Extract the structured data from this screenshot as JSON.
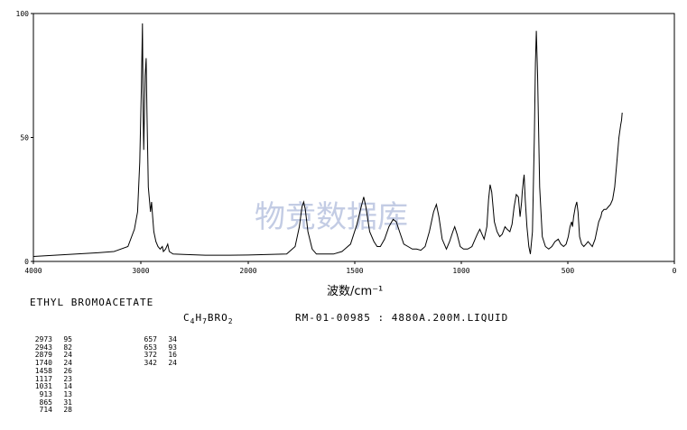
{
  "chart_data": {
    "type": "line",
    "xlabel": "波数/cm⁻¹",
    "ylabel": "",
    "xlim": [
      4000,
      0
    ],
    "ylim": [
      0,
      100
    ],
    "x_ticks": [
      "4000",
      "3000",
      "2000",
      "1500",
      "1000",
      "500",
      "0"
    ],
    "y_ticks": [
      "100",
      "50",
      "0"
    ],
    "grid": false,
    "series": [
      {
        "points": [
          [
            4000,
            2
          ],
          [
            3800,
            2.5
          ],
          [
            3600,
            3
          ],
          [
            3400,
            3.5
          ],
          [
            3250,
            4
          ],
          [
            3120,
            6
          ],
          [
            3060,
            13
          ],
          [
            3030,
            20
          ],
          [
            3010,
            40
          ],
          [
            2995,
            70
          ],
          [
            2985,
            96
          ],
          [
            2978,
            60
          ],
          [
            2973,
            45
          ],
          [
            2960,
            75
          ],
          [
            2950,
            82
          ],
          [
            2943,
            60
          ],
          [
            2930,
            30
          ],
          [
            2910,
            20
          ],
          [
            2900,
            24
          ],
          [
            2890,
            18
          ],
          [
            2879,
            12
          ],
          [
            2860,
            8
          ],
          [
            2840,
            6
          ],
          [
            2820,
            5
          ],
          [
            2800,
            6
          ],
          [
            2790,
            4
          ],
          [
            2770,
            5
          ],
          [
            2750,
            7
          ],
          [
            2735,
            4
          ],
          [
            2700,
            3
          ],
          [
            2600,
            2.8
          ],
          [
            2400,
            2.5
          ],
          [
            2200,
            2.5
          ],
          [
            2000,
            2.6
          ],
          [
            1900,
            2.8
          ],
          [
            1820,
            3
          ],
          [
            1780,
            6
          ],
          [
            1760,
            14
          ],
          [
            1748,
            22
          ],
          [
            1740,
            24
          ],
          [
            1732,
            21
          ],
          [
            1720,
            12
          ],
          [
            1700,
            5
          ],
          [
            1680,
            3
          ],
          [
            1640,
            3
          ],
          [
            1600,
            3
          ],
          [
            1560,
            4
          ],
          [
            1520,
            7
          ],
          [
            1490,
            15
          ],
          [
            1470,
            22
          ],
          [
            1458,
            26
          ],
          [
            1448,
            22
          ],
          [
            1430,
            12
          ],
          [
            1410,
            8
          ],
          [
            1395,
            6
          ],
          [
            1380,
            6
          ],
          [
            1360,
            9
          ],
          [
            1340,
            14
          ],
          [
            1320,
            17
          ],
          [
            1305,
            16
          ],
          [
            1290,
            12
          ],
          [
            1270,
            7
          ],
          [
            1250,
            6
          ],
          [
            1230,
            5
          ],
          [
            1210,
            5
          ],
          [
            1190,
            4.5
          ],
          [
            1170,
            6
          ],
          [
            1150,
            12
          ],
          [
            1130,
            20
          ],
          [
            1117,
            23
          ],
          [
            1105,
            18
          ],
          [
            1090,
            9
          ],
          [
            1070,
            5
          ],
          [
            1055,
            8
          ],
          [
            1040,
            12
          ],
          [
            1031,
            14
          ],
          [
            1020,
            11
          ],
          [
            1005,
            6
          ],
          [
            990,
            5
          ],
          [
            970,
            5
          ],
          [
            950,
            6
          ],
          [
            935,
            9
          ],
          [
            925,
            11
          ],
          [
            913,
            13
          ],
          [
            903,
            11
          ],
          [
            893,
            9
          ],
          [
            880,
            14
          ],
          [
            872,
            25
          ],
          [
            865,
            31
          ],
          [
            857,
            28
          ],
          [
            845,
            16
          ],
          [
            832,
            12
          ],
          [
            820,
            10
          ],
          [
            808,
            11
          ],
          [
            795,
            14
          ],
          [
            785,
            13
          ],
          [
            772,
            12
          ],
          [
            762,
            15
          ],
          [
            752,
            22
          ],
          [
            742,
            27
          ],
          [
            732,
            26
          ],
          [
            724,
            18
          ],
          [
            717,
            24
          ],
          [
            714,
            28
          ],
          [
            708,
            33
          ],
          [
            705,
            35
          ],
          [
            700,
            25
          ],
          [
            692,
            14
          ],
          [
            683,
            6
          ],
          [
            676,
            3
          ],
          [
            666,
            12
          ],
          [
            657,
            50
          ],
          [
            652,
            80
          ],
          [
            648,
            93
          ],
          [
            642,
            75
          ],
          [
            632,
            30
          ],
          [
            620,
            10
          ],
          [
            605,
            6
          ],
          [
            590,
            5
          ],
          [
            575,
            6
          ],
          [
            560,
            8
          ],
          [
            545,
            9
          ],
          [
            533,
            7
          ],
          [
            520,
            6
          ],
          [
            508,
            7
          ],
          [
            498,
            10
          ],
          [
            490,
            14
          ],
          [
            482,
            16
          ],
          [
            478,
            14
          ],
          [
            473,
            18
          ],
          [
            465,
            22
          ],
          [
            458,
            24
          ],
          [
            452,
            20
          ],
          [
            445,
            10
          ],
          [
            435,
            7
          ],
          [
            425,
            6
          ],
          [
            415,
            7
          ],
          [
            405,
            8
          ],
          [
            395,
            7
          ],
          [
            385,
            6
          ],
          [
            372,
            9
          ],
          [
            365,
            12
          ],
          [
            355,
            16
          ],
          [
            345,
            18
          ],
          [
            340,
            20
          ],
          [
            330,
            21
          ],
          [
            320,
            21
          ],
          [
            310,
            22
          ],
          [
            300,
            23
          ],
          [
            290,
            25
          ],
          [
            280,
            30
          ],
          [
            270,
            40
          ],
          [
            260,
            50
          ],
          [
            252,
            55
          ],
          [
            248,
            57
          ],
          [
            245,
            60
          ]
        ]
      }
    ]
  },
  "watermark": "物竞数据库",
  "compound_name": "ETHYL BROMOACETATE",
  "formula": {
    "part1": "C",
    "sub1": "4",
    "part2": "H",
    "sub2": "7",
    "part3": "BRO",
    "sub3": "2"
  },
  "sample_info": "RM-01-00985 : 4880A.200M.LIQUID",
  "peak_table_1": [
    {
      "wn": "2973",
      "int": "95"
    },
    {
      "wn": "2943",
      "int": "82"
    },
    {
      "wn": "2879",
      "int": "24"
    },
    {
      "wn": "1740",
      "int": "24"
    },
    {
      "wn": "1458",
      "int": "26"
    },
    {
      "wn": "1117",
      "int": "23"
    },
    {
      "wn": "1031",
      "int": "14"
    },
    {
      "wn": "913",
      "int": "13"
    },
    {
      "wn": "865",
      "int": "31"
    },
    {
      "wn": "714",
      "int": "28"
    }
  ],
  "peak_table_2": [
    {
      "wn": "657",
      "int": "34"
    },
    {
      "wn": "653",
      "int": "93"
    },
    {
      "wn": "372",
      "int": "16"
    },
    {
      "wn": "342",
      "int": "24"
    }
  ]
}
